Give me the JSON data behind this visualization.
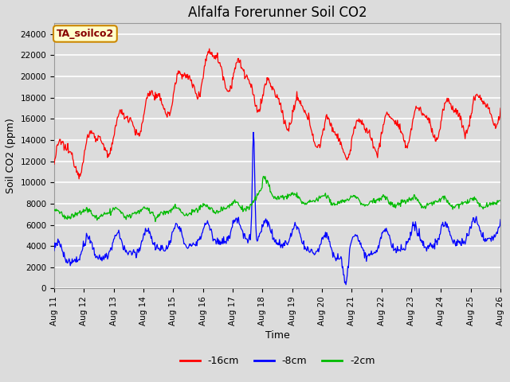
{
  "title": "Alfalfa Forerunner Soil CO2",
  "xlabel": "Time",
  "ylabel": "Soil CO2 (ppm)",
  "legend_label": "TA_soilco2",
  "series_labels": [
    "-16cm",
    "-8cm",
    "-2cm"
  ],
  "series_colors": [
    "#ff0000",
    "#0000ff",
    "#00bb00"
  ],
  "ylim": [
    0,
    25000
  ],
  "yticks": [
    0,
    2000,
    4000,
    6000,
    8000,
    10000,
    12000,
    14000,
    16000,
    18000,
    20000,
    22000,
    24000
  ],
  "xtick_labels": [
    "Aug 11",
    "Aug 12",
    "Aug 13",
    "Aug 14",
    "Aug 15",
    "Aug 16",
    "Aug 17",
    "Aug 18",
    "Aug 19",
    "Aug 20",
    "Aug 21",
    "Aug 22",
    "Aug 23",
    "Aug 24",
    "Aug 25",
    "Aug 26"
  ],
  "plot_bg": "#dcdcdc",
  "fig_bg": "#dcdcdc",
  "title_fontsize": 12,
  "axis_label_fontsize": 9,
  "tick_fontsize": 7.5,
  "legend_fontsize": 9,
  "grid_color": "#ffffff",
  "legend_box_fc": "#ffffcc",
  "legend_box_ec": "#cc8800",
  "legend_box_tc": "#880000"
}
